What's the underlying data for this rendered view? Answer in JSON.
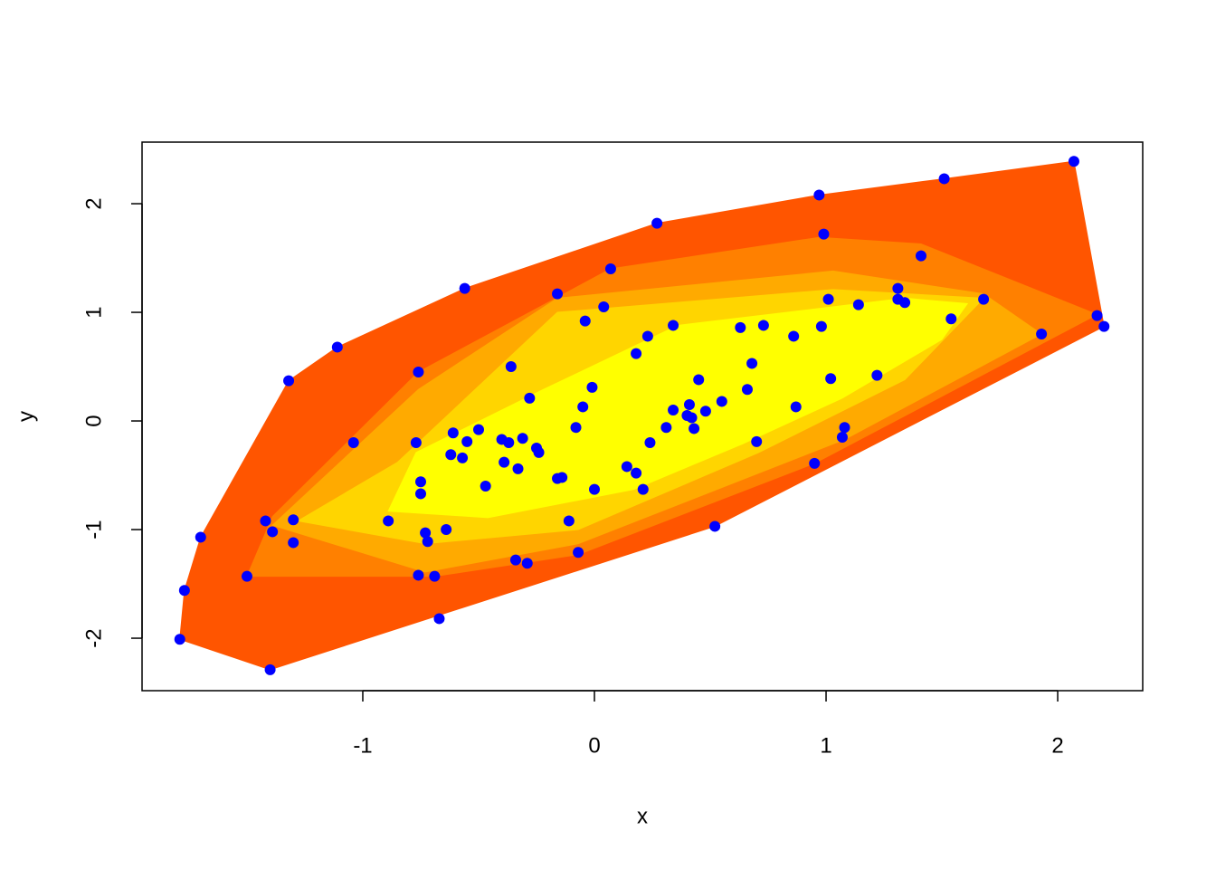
{
  "chart_data": {
    "type": "scatter",
    "xlabel": "x",
    "ylabel": "y",
    "xlim": [
      -1.953,
      2.367
    ],
    "ylim": [
      -2.483,
      2.567
    ],
    "xticks": [
      -1,
      0,
      1,
      2
    ],
    "yticks": [
      -2,
      -1,
      0,
      1,
      2
    ],
    "color": "#0000ff",
    "x": [
      -1.79,
      -1.77,
      -1.7,
      -1.5,
      -1.4,
      -1.42,
      -1.39,
      -1.3,
      -1.3,
      -1.32,
      -1.11,
      -1.04,
      -0.89,
      -0.76,
      -0.77,
      -0.75,
      -0.75,
      -0.73,
      -0.72,
      -0.76,
      -0.69,
      -0.67,
      -0.64,
      -0.62,
      -0.61,
      -0.57,
      -0.55,
      -0.56,
      -0.5,
      -0.47,
      -0.4,
      -0.39,
      -0.37,
      -0.36,
      -0.34,
      -0.33,
      -0.31,
      -0.29,
      -0.28,
      -0.25,
      -0.24,
      -0.16,
      -0.16,
      -0.14,
      -0.11,
      -0.08,
      -0.07,
      -0.05,
      -0.04,
      -0.01,
      0.0,
      0.04,
      0.07,
      0.14,
      0.18,
      0.18,
      0.21,
      0.23,
      0.24,
      0.27,
      0.31,
      0.34,
      0.34,
      0.4,
      0.41,
      0.42,
      0.43,
      0.45,
      0.48,
      0.52,
      0.55,
      0.63,
      0.66,
      0.68,
      0.7,
      0.73,
      0.86,
      0.87,
      0.95,
      0.97,
      0.98,
      0.99,
      1.01,
      1.02,
      1.07,
      1.08,
      1.14,
      1.22,
      1.31,
      1.31,
      1.34,
      1.41,
      1.51,
      1.54,
      1.68,
      1.93,
      2.07,
      2.17,
      2.2
    ],
    "y": [
      -2.01,
      -1.56,
      -1.07,
      -1.43,
      -2.29,
      -0.92,
      -1.02,
      -0.91,
      -1.12,
      0.37,
      0.68,
      -0.2,
      -0.92,
      0.45,
      -0.2,
      -0.56,
      -0.67,
      -1.03,
      -1.11,
      -1.42,
      -1.43,
      -1.82,
      -1.0,
      -0.31,
      -0.11,
      -0.34,
      -0.19,
      1.22,
      -0.08,
      -0.6,
      -0.17,
      -0.38,
      -0.2,
      0.5,
      -1.28,
      -0.44,
      -0.16,
      -1.31,
      0.21,
      -0.25,
      -0.29,
      1.17,
      -0.53,
      -0.52,
      -0.92,
      -0.06,
      -1.21,
      0.13,
      0.92,
      0.31,
      -0.63,
      1.05,
      1.4,
      -0.42,
      -0.48,
      0.62,
      -0.63,
      0.78,
      -0.2,
      1.82,
      -0.06,
      0.1,
      0.88,
      0.05,
      0.15,
      0.03,
      -0.07,
      0.38,
      0.09,
      -0.97,
      0.18,
      0.86,
      0.29,
      0.53,
      -0.19,
      0.88,
      0.78,
      0.13,
      -0.39,
      2.08,
      0.87,
      1.72,
      1.12,
      0.39,
      -0.15,
      -0.06,
      1.07,
      0.42,
      1.12,
      1.22,
      1.09,
      1.52,
      2.23,
      0.94,
      1.12,
      0.8,
      2.39,
      0.97,
      0.87
    ],
    "contours": [
      {
        "color": "#ff5500",
        "x": [
          -1.4,
          -1.79,
          -1.77,
          -1.7,
          -1.32,
          -1.11,
          -0.56,
          0.27,
          0.97,
          1.51,
          2.07,
          2.2,
          0.52
        ],
        "y": [
          -2.29,
          -2.01,
          -1.56,
          -1.07,
          0.37,
          0.68,
          1.22,
          1.82,
          2.08,
          2.23,
          2.39,
          0.87,
          -0.97
        ]
      },
      {
        "color": "#ff8000",
        "x": [
          -1.5,
          -1.39,
          -0.76,
          0.07,
          0.97,
          1.41,
          2.17,
          1.93,
          0.95,
          -0.07,
          -0.69
        ],
        "y": [
          -1.43,
          -0.88,
          0.45,
          1.4,
          1.69,
          1.63,
          0.98,
          0.71,
          -0.39,
          -1.23,
          -1.43
        ]
      },
      {
        "color": "#ffaa00",
        "x": [
          -1.39,
          -0.76,
          -0.16,
          1.03,
          1.68,
          1.93,
          1.08,
          -0.07,
          -0.73
        ],
        "y": [
          -0.96,
          0.29,
          1.13,
          1.38,
          1.17,
          0.8,
          -0.17,
          -1.13,
          -1.39
        ]
      },
      {
        "color": "#ffd500",
        "x": [
          -1.28,
          -0.85,
          -0.16,
          1.03,
          1.68,
          1.34,
          0.71,
          -0.07,
          -0.73
        ],
        "y": [
          -0.92,
          -0.38,
          1.0,
          1.21,
          1.13,
          0.38,
          -0.29,
          -1.0,
          -1.13
        ]
      },
      {
        "color": "#ffff00",
        "x": [
          -0.89,
          -0.77,
          -0.22,
          0.36,
          1.34,
          1.61,
          1.5,
          1.07,
          0.64,
          0.17,
          -0.46
        ],
        "y": [
          -0.83,
          -0.29,
          0.29,
          0.88,
          1.13,
          1.08,
          0.75,
          0.21,
          -0.21,
          -0.63,
          -0.89
        ]
      }
    ]
  }
}
